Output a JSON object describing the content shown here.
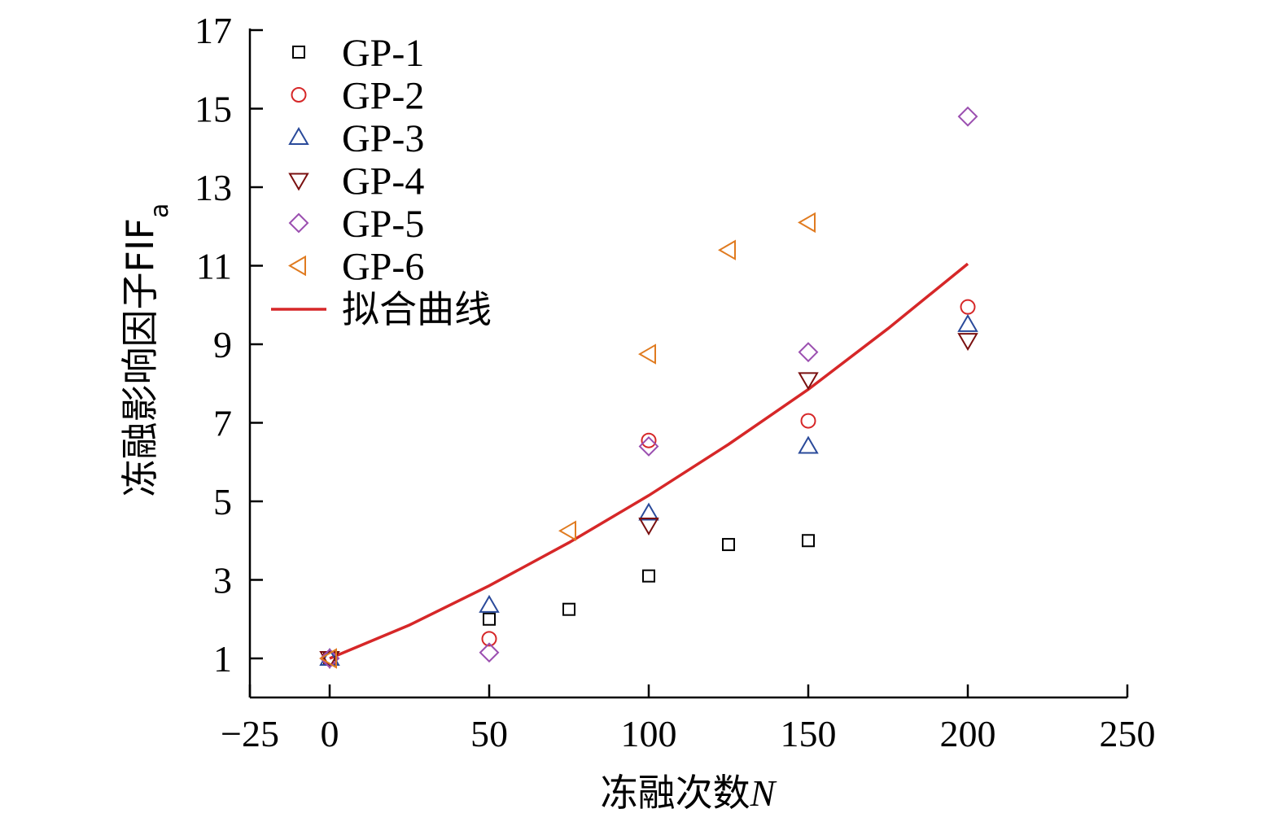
{
  "chart_data": {
    "type": "scatter",
    "xlabel": "冻融次数",
    "xlabel_var": "N",
    "ylabel": "冻融影响因子FIF",
    "ylabel_sub": "a",
    "xlim": [
      -25,
      250
    ],
    "ylim": [
      0,
      17
    ],
    "xticks": [
      -25,
      0,
      50,
      100,
      150,
      200,
      250
    ],
    "xtick_labels": [
      "−25",
      "0",
      "50",
      "100",
      "150",
      "200",
      "250"
    ],
    "yticks": [
      1,
      3,
      5,
      7,
      9,
      11,
      13,
      15,
      17
    ],
    "ytick_labels": [
      "1",
      "3",
      "5",
      "7",
      "9",
      "11",
      "13",
      "15",
      "17"
    ],
    "legend_position": "top-left",
    "series": [
      {
        "name": "GP-1",
        "marker": "square",
        "color": "#000000",
        "x": [
          0,
          50,
          75,
          100,
          125,
          150
        ],
        "y": [
          1.0,
          2.0,
          2.25,
          3.1,
          3.9,
          4.0
        ]
      },
      {
        "name": "GP-2",
        "marker": "circle",
        "color": "#d62728",
        "x": [
          0,
          50,
          100,
          150,
          200
        ],
        "y": [
          1.0,
          1.5,
          6.55,
          7.05,
          9.95
        ]
      },
      {
        "name": "GP-3",
        "marker": "triangle-up",
        "color": "#2a4a9a",
        "x": [
          0,
          50,
          100,
          150,
          200
        ],
        "y": [
          1.0,
          2.35,
          4.7,
          6.4,
          9.5
        ]
      },
      {
        "name": "GP-4",
        "marker": "triangle-down",
        "color": "#7a1010",
        "x": [
          0,
          100,
          150,
          200
        ],
        "y": [
          1.0,
          4.4,
          8.1,
          9.1
        ]
      },
      {
        "name": "GP-5",
        "marker": "diamond",
        "color": "#9b4fb0",
        "x": [
          0,
          50,
          100,
          150,
          200
        ],
        "y": [
          1.0,
          1.15,
          6.4,
          8.8,
          14.8
        ]
      },
      {
        "name": "GP-6",
        "marker": "triangle-left",
        "color": "#e07b20",
        "x": [
          0,
          75,
          100,
          125,
          150
        ],
        "y": [
          1.0,
          4.25,
          8.75,
          11.4,
          12.1
        ]
      }
    ],
    "fit_line": {
      "name": "拟合曲线",
      "color": "#d62728",
      "x": [
        0,
        25,
        50,
        75,
        100,
        125,
        150,
        175,
        200
      ],
      "y": [
        1.0,
        1.85,
        2.85,
        3.95,
        5.15,
        6.45,
        7.85,
        9.4,
        11.05
      ]
    }
  }
}
